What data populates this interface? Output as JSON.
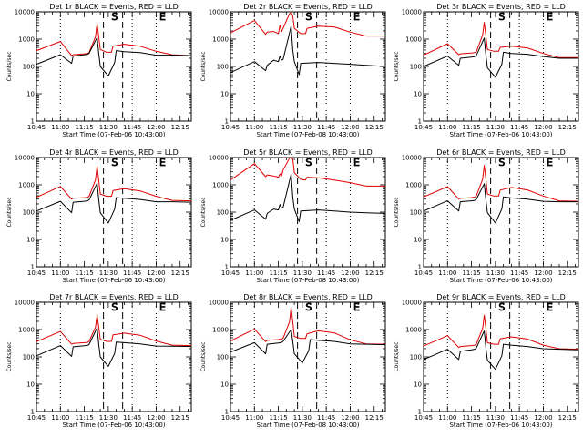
{
  "colors": {
    "events": "#000000",
    "lld": "#e00000",
    "axes": "#000000",
    "background": "#ffffff"
  },
  "chart_data": {
    "type": "line",
    "grid": false,
    "xtick_labels": [
      "10:45",
      "11:00",
      "11:15",
      "11:30",
      "11:45",
      "12:00",
      "12:15"
    ],
    "xtick_minutes": [
      0,
      15,
      30,
      45,
      60,
      75,
      90
    ],
    "xlim_minutes": [
      0,
      97
    ],
    "ytick_labels": [
      "1",
      "10",
      "100",
      "1000",
      "10000"
    ],
    "ylim": [
      1,
      10000
    ],
    "yscale": "log",
    "dotted_lines_at": [
      "11:00",
      "11:45",
      "12:00"
    ],
    "dashed_lines_at": [
      "11:27",
      "11:39"
    ],
    "markers": [
      {
        "label": "S",
        "at": "11:34"
      },
      {
        "label": "E",
        "at": "12:04"
      }
    ],
    "panels": [
      {
        "title": "Det 1r BLACK = Events, RED = LLD",
        "xlabel": "Start Time (07-Feb-06 10:43:00)",
        "ylabel": "Counts/sec",
        "series": [
          {
            "name": "Events",
            "x": [
              0,
              15,
              22,
              23,
              30,
              32,
              33,
              38,
              39,
              40,
              45,
              49,
              50,
              55,
              65,
              75,
              85,
              97
            ],
            "y": [
              120,
              270,
              130,
              240,
              270,
              280,
              300,
              1150,
              300,
              100,
              45,
              140,
              380,
              350,
              320,
              260,
              260,
              250
            ]
          },
          {
            "name": "LLD",
            "x": [
              0,
              15,
              22,
              23,
              30,
              32,
              33,
              37,
              38,
              39,
              40,
              44,
              47,
              48,
              55,
              65,
              75,
              85,
              97
            ],
            "y": [
              380,
              820,
              250,
              270,
              290,
              300,
              320,
              1200,
              3700,
              1200,
              420,
              330,
              330,
              560,
              650,
              550,
              360,
              270,
              250
            ]
          }
        ]
      },
      {
        "title": "Det 2r BLACK = Events, RED = LLD",
        "xlabel": "Start Time (07-Feb-08 10:43:00)",
        "ylabel": "Counts/sec",
        "series": [
          {
            "name": "Events",
            "x": [
              0,
              15,
              22,
              23,
              27,
              30,
              31,
              32,
              33,
              38,
              39,
              40,
              43,
              44,
              55,
              65,
              75,
              85,
              97
            ],
            "y": [
              60,
              150,
              70,
              110,
              170,
              150,
              240,
              170,
              180,
              3000,
              400,
              150,
              50,
              130,
              140,
              130,
              120,
              110,
              100
            ]
          },
          {
            "name": "LLD",
            "x": [
              0,
              15,
              22,
              23,
              27,
              30,
              31,
              32,
              33,
              37,
              38,
              39,
              40,
              44,
              47,
              48,
              55,
              65,
              75,
              85,
              97
            ],
            "y": [
              1700,
              4800,
              1500,
              1800,
              1900,
              1600,
              3200,
              1900,
              2500,
              8500,
              9500,
              7000,
              2500,
              1600,
              1600,
              2500,
              3000,
              2800,
              1800,
              1300,
              1300
            ]
          }
        ]
      },
      {
        "title": "Det 3r BLACK = Events, RED = LLD",
        "xlabel": "Start Time (07-Feb-06 10:43:00)",
        "ylabel": "Counts/sec",
        "series": [
          {
            "name": "Events",
            "x": [
              0,
              15,
              22,
              23,
              30,
              32,
              33,
              38,
              39,
              40,
              45,
              49,
              50,
              55,
              65,
              75,
              85,
              97
            ],
            "y": [
              100,
              240,
              110,
              200,
              220,
              230,
              250,
              1100,
              260,
              90,
              40,
              120,
              330,
              300,
              280,
              230,
              200,
              200
            ]
          },
          {
            "name": "LLD",
            "x": [
              0,
              15,
              22,
              23,
              30,
              32,
              33,
              37,
              38,
              39,
              40,
              44,
              47,
              48,
              55,
              65,
              75,
              85,
              97
            ],
            "y": [
              260,
              680,
              270,
              290,
              310,
              320,
              340,
              1400,
              4100,
              1300,
              420,
              360,
              360,
              500,
              550,
              480,
              300,
              210,
              210
            ]
          }
        ]
      },
      {
        "title": "Det 4r BLACK = Events, RED = LLD",
        "xlabel": "Start Time (07-Feb-06 10:43:00)",
        "ylabel": "Counts/sec",
        "series": [
          {
            "name": "Events",
            "x": [
              0,
              15,
              22,
              23,
              30,
              32,
              33,
              38,
              39,
              40,
              45,
              49,
              50,
              55,
              65,
              75,
              85,
              97
            ],
            "y": [
              110,
              250,
              95,
              230,
              250,
              260,
              280,
              1150,
              290,
              95,
              40,
              130,
              340,
              320,
              290,
              240,
              240,
              230
            ]
          },
          {
            "name": "LLD",
            "x": [
              0,
              15,
              22,
              23,
              30,
              32,
              33,
              37,
              38,
              39,
              40,
              44,
              47,
              48,
              55,
              65,
              75,
              85,
              97
            ],
            "y": [
              350,
              870,
              300,
              320,
              340,
              350,
              380,
              1500,
              4800,
              1500,
              460,
              380,
              380,
              620,
              720,
              600,
              380,
              270,
              260
            ]
          }
        ]
      },
      {
        "title": "Det 5r BLACK = Events, RED = LLD",
        "xlabel": "Start Time (07-Feb-08 10:43:00)",
        "ylabel": "Counts/sec",
        "series": [
          {
            "name": "Events",
            "x": [
              0,
              15,
              22,
              23,
              27,
              30,
              31,
              32,
              33,
              38,
              39,
              40,
              43,
              44,
              55,
              65,
              75,
              85,
              97
            ],
            "y": [
              50,
              120,
              55,
              90,
              130,
              120,
              190,
              140,
              150,
              2500,
              350,
              130,
              45,
              110,
              120,
              110,
              100,
              95,
              90
            ]
          },
          {
            "name": "LLD",
            "x": [
              0,
              15,
              22,
              23,
              27,
              30,
              31,
              32,
              33,
              37,
              38,
              39,
              40,
              44,
              47,
              48,
              55,
              65,
              75,
              85,
              97
            ],
            "y": [
              1500,
              6000,
              2000,
              2300,
              2100,
              1900,
              2500,
              2100,
              3500,
              9500,
              9800,
              9000,
              2800,
              1600,
              1500,
              1900,
              1800,
              1500,
              1200,
              900,
              900
            ]
          }
        ]
      },
      {
        "title": "Det 6r BLACK = Events, RED = LLD",
        "xlabel": "Start Time (07-Feb-06 10:43:00)",
        "ylabel": "Counts/sec",
        "series": [
          {
            "name": "Events",
            "x": [
              0,
              15,
              22,
              23,
              30,
              32,
              33,
              38,
              39,
              40,
              45,
              49,
              50,
              55,
              65,
              75,
              85,
              97
            ],
            "y": [
              110,
              260,
              110,
              240,
              260,
              270,
              290,
              1100,
              280,
              95,
              40,
              130,
              360,
              330,
              300,
              250,
              240,
              240
            ]
          },
          {
            "name": "LLD",
            "x": [
              0,
              15,
              22,
              23,
              30,
              32,
              33,
              37,
              38,
              39,
              40,
              44,
              47,
              48,
              55,
              65,
              75,
              85,
              97
            ],
            "y": [
              360,
              860,
              300,
              320,
              340,
              360,
              390,
              1600,
              5200,
              1600,
              460,
              390,
              390,
              640,
              800,
              650,
              390,
              260,
              250
            ]
          }
        ]
      },
      {
        "title": "Det 7r BLACK = Events, RED = LLD",
        "xlabel": "Start Time (07-Feb-06 10:43:00)",
        "ylabel": "Counts/sec",
        "series": [
          {
            "name": "Events",
            "x": [
              0,
              15,
              22,
              23,
              30,
              32,
              33,
              38,
              39,
              40,
              45,
              49,
              50,
              55,
              65,
              75,
              85,
              97
            ],
            "y": [
              110,
              260,
              105,
              235,
              255,
              265,
              285,
              1150,
              290,
              100,
              45,
              135,
              350,
              330,
              300,
              250,
              245,
              240
            ]
          },
          {
            "name": "LLD",
            "x": [
              0,
              15,
              22,
              23,
              30,
              32,
              33,
              37,
              38,
              39,
              40,
              44,
              47,
              48,
              55,
              65,
              75,
              85,
              97
            ],
            "y": [
              360,
              850,
              290,
              310,
              330,
              340,
              370,
              1200,
              3500,
              1200,
              440,
              370,
              370,
              640,
              740,
              620,
              380,
              270,
              260
            ]
          }
        ]
      },
      {
        "title": "Det 8r BLACK = Events, RED = LLD",
        "xlabel": "Start Time (07-Feb-08 10:43:00)",
        "ylabel": "Counts/sec",
        "series": [
          {
            "name": "Events",
            "x": [
              0,
              15,
              22,
              23,
              30,
              32,
              33,
              38,
              39,
              40,
              45,
              49,
              50,
              55,
              65,
              75,
              85,
              97
            ],
            "y": [
              150,
              330,
              130,
              290,
              320,
              340,
              370,
              1000,
              370,
              130,
              60,
              170,
              430,
              400,
              370,
              300,
              290,
              280
            ]
          },
          {
            "name": "LLD",
            "x": [
              0,
              15,
              22,
              23,
              30,
              32,
              33,
              37,
              38,
              39,
              40,
              44,
              47,
              48,
              55,
              65,
              75,
              85,
              97
            ],
            "y": [
              380,
              1050,
              360,
              400,
              430,
              450,
              480,
              1900,
              6500,
              2000,
              560,
              470,
              470,
              700,
              900,
              760,
              420,
              300,
              290
            ]
          }
        ]
      },
      {
        "title": "Det 9r BLACK = Events, RED = LLD",
        "xlabel": "Start Time (07-Feb-06 10:43:00)",
        "ylabel": "Counts/sec",
        "series": [
          {
            "name": "Events",
            "x": [
              0,
              15,
              22,
              23,
              30,
              32,
              33,
              38,
              39,
              40,
              45,
              49,
              50,
              55,
              65,
              75,
              85,
              97
            ],
            "y": [
              80,
              190,
              80,
              160,
              180,
              190,
              210,
              900,
              210,
              75,
              35,
              110,
              290,
              270,
              240,
              200,
              190,
              180
            ]
          },
          {
            "name": "LLD",
            "x": [
              0,
              15,
              22,
              23,
              30,
              32,
              33,
              37,
              38,
              39,
              40,
              44,
              47,
              48,
              55,
              65,
              75,
              85,
              97
            ],
            "y": [
              250,
              600,
              220,
              240,
              260,
              270,
              290,
              1100,
              3400,
              1100,
              330,
              290,
              290,
              460,
              540,
              450,
              270,
              200,
              190
            ]
          }
        ]
      }
    ]
  }
}
